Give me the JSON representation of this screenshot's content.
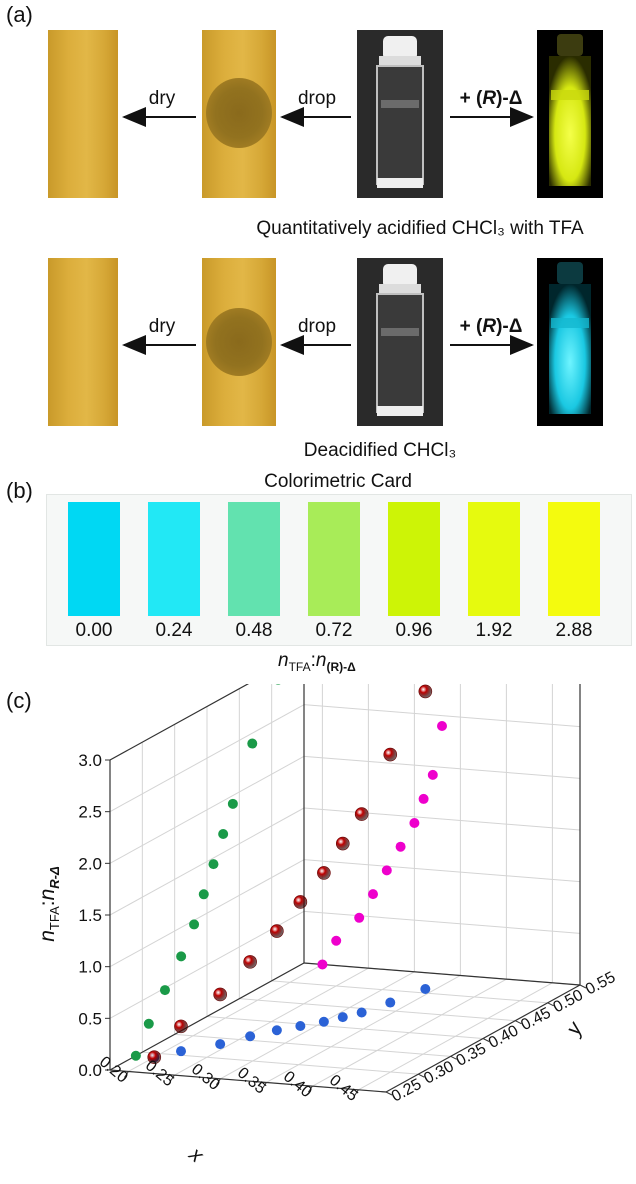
{
  "panel_a": {
    "label": "(a)",
    "rows": [
      {
        "dry_label": "dry",
        "drop_label": "drop",
        "add_label_prefix": "+ (",
        "add_label_R": "R",
        "add_label_suffix": ")-Δ",
        "caption": "Quantitatively acidified CHCl₃ with TFA",
        "emission_color": "#e8f21a"
      },
      {
        "dry_label": "dry",
        "drop_label": "drop",
        "add_label_prefix": "+ (",
        "add_label_R": "R",
        "add_label_suffix": ")-Δ",
        "caption": "Deacidified CHCl₃",
        "emission_color": "#2fd8ee"
      }
    ]
  },
  "panel_b": {
    "label": "(b)",
    "title": "Colorimetric Card",
    "swatches": [
      {
        "value": "0.00",
        "color": "#00d8f3"
      },
      {
        "value": "0.24",
        "color": "#22e8f5"
      },
      {
        "value": "0.48",
        "color": "#62e2af"
      },
      {
        "value": "0.72",
        "color": "#a8ec58"
      },
      {
        "value": "0.96",
        "color": "#cdf406"
      },
      {
        "value": "1.92",
        "color": "#e6fa0e"
      },
      {
        "value": "2.88",
        "color": "#f4fb0e"
      }
    ],
    "axis_n": "n",
    "axis_tfa": "TFA",
    "axis_colon": ":",
    "axis_n2": "n",
    "axis_sub2": "(R)-Δ"
  },
  "panel_c": {
    "label": "(c)",
    "chart_data": {
      "type": "scatter",
      "zlabel": "nTFA:nR-Δ",
      "xlabel": "x",
      "ylabel": "y",
      "z_ticks": [
        "0.0",
        "0.5",
        "1.0",
        "1.5",
        "2.0",
        "2.5",
        "3.0"
      ],
      "x_ticks": [
        "0.20",
        "0.25",
        "0.30",
        "0.35",
        "0.40",
        "0.45"
      ],
      "y_ticks": [
        "0.25",
        "0.30",
        "0.35",
        "0.40",
        "0.45",
        "0.50",
        "0.55"
      ],
      "xlim": [
        0.18,
        0.48
      ],
      "ylim": [
        0.25,
        0.55
      ],
      "zlim": [
        0,
        3
      ],
      "grid": true,
      "series_colors": {
        "xyz": "#c00000",
        "xz": "#ee00cc",
        "yz": "#1a9a48",
        "xy": "#2b62d6"
      },
      "points": [
        {
          "x": 0.2,
          "y": 0.29,
          "z": 0.0
        },
        {
          "x": 0.215,
          "y": 0.31,
          "z": 0.24
        },
        {
          "x": 0.24,
          "y": 0.335,
          "z": 0.48
        },
        {
          "x": 0.255,
          "y": 0.36,
          "z": 0.72
        },
        {
          "x": 0.27,
          "y": 0.38,
          "z": 0.96
        },
        {
          "x": 0.285,
          "y": 0.395,
          "z": 1.2
        },
        {
          "x": 0.3,
          "y": 0.41,
          "z": 1.44
        },
        {
          "x": 0.31,
          "y": 0.425,
          "z": 1.68
        },
        {
          "x": 0.32,
          "y": 0.44,
          "z": 1.92
        },
        {
          "x": 0.33,
          "y": 0.47,
          "z": 2.4
        },
        {
          "x": 0.34,
          "y": 0.51,
          "z": 2.88
        }
      ]
    }
  }
}
